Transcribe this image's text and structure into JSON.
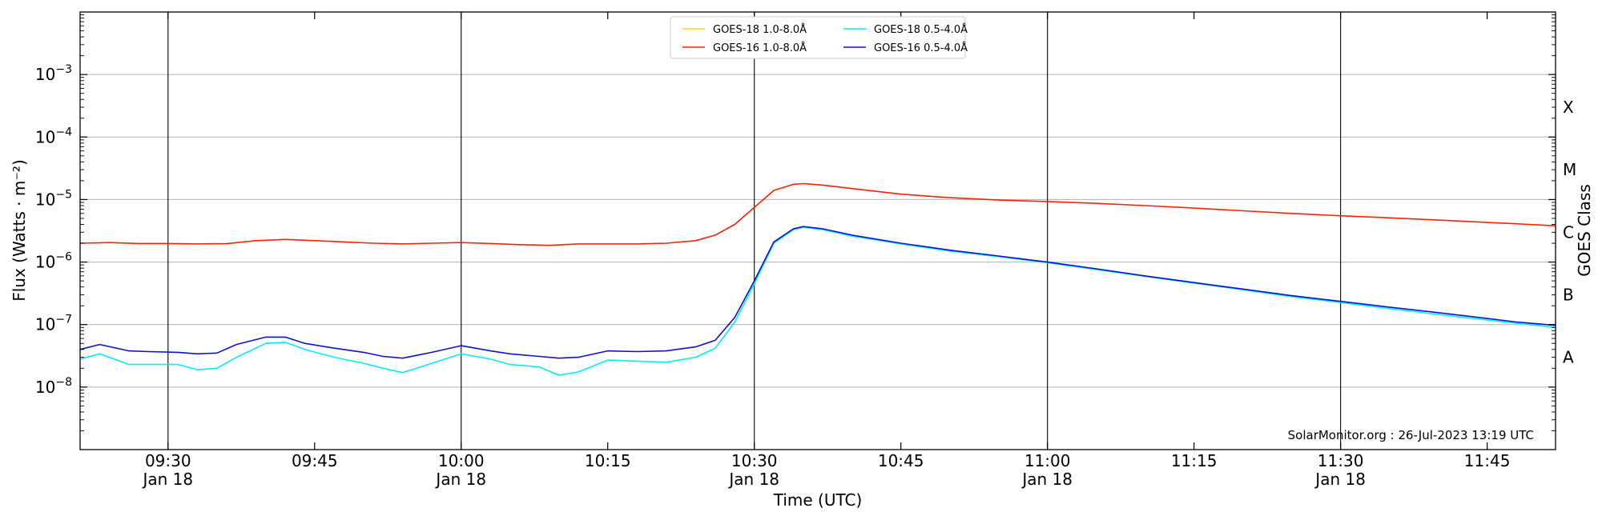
{
  "chart_data": {
    "type": "line",
    "xlabel": "Time (UTC)",
    "ylabel": "Flux (Watts · m⁻²)",
    "right_label": "GOES Class",
    "credit": "SolarMonitor.org : 26-Jul-2023 13:19 UTC",
    "grid": "horizontal",
    "legend_position": "top-center",
    "yscale": "log",
    "ylim": [
      1e-09,
      0.01
    ],
    "xlim": [
      "09:21",
      "11:52"
    ],
    "y_ticks": [
      {
        "value": 1e-08,
        "base": "10",
        "exp": "−8"
      },
      {
        "value": 1e-07,
        "base": "10",
        "exp": "−7"
      },
      {
        "value": 1e-06,
        "base": "10",
        "exp": "−6"
      },
      {
        "value": 1e-05,
        "base": "10",
        "exp": "−5"
      },
      {
        "value": 0.0001,
        "base": "10",
        "exp": "−4"
      },
      {
        "value": 0.001,
        "base": "10",
        "exp": "−3"
      }
    ],
    "x_ticks": [
      {
        "time": "09:30",
        "label": "09:30",
        "date": "Jan 18",
        "vline": true
      },
      {
        "time": "09:45",
        "label": "09:45",
        "date": "",
        "vline": false
      },
      {
        "time": "10:00",
        "label": "10:00",
        "date": "Jan 18",
        "vline": true
      },
      {
        "time": "10:15",
        "label": "10:15",
        "date": "",
        "vline": false
      },
      {
        "time": "10:30",
        "label": "10:30",
        "date": "Jan 18",
        "vline": true
      },
      {
        "time": "10:45",
        "label": "10:45",
        "date": "",
        "vline": false
      },
      {
        "time": "11:00",
        "label": "11:00",
        "date": "Jan 18",
        "vline": true
      },
      {
        "time": "11:15",
        "label": "11:15",
        "date": "",
        "vline": false
      },
      {
        "time": "11:30",
        "label": "11:30",
        "date": "Jan 18",
        "vline": true
      },
      {
        "time": "11:45",
        "label": "11:45",
        "date": "",
        "vline": false
      }
    ],
    "classes": [
      {
        "label": "A",
        "value": 3e-08
      },
      {
        "label": "B",
        "value": 3e-07
      },
      {
        "label": "C",
        "value": 3e-06
      },
      {
        "label": "M",
        "value": 3e-05
      },
      {
        "label": "X",
        "value": 0.0003
      }
    ],
    "series": [
      {
        "name": "GOES-18 1.0-8.0Å",
        "color": "#ffd700",
        "x": [],
        "values": []
      },
      {
        "name": "GOES-16 1.0-8.0Å",
        "color": "#ff2000",
        "x": [
          "09:21",
          "09:24",
          "09:27",
          "09:30",
          "09:33",
          "09:36",
          "09:39",
          "09:42",
          "09:45",
          "09:48",
          "09:51",
          "09:54",
          "09:57",
          "10:00",
          "10:03",
          "10:06",
          "10:09",
          "10:12",
          "10:15",
          "10:18",
          "10:21",
          "10:24",
          "10:26",
          "10:28",
          "10:30",
          "10:32",
          "10:34",
          "10:35",
          "10:37",
          "10:40",
          "10:45",
          "10:50",
          "10:55",
          "11:00",
          "11:05",
          "11:10",
          "11:15",
          "11:20",
          "11:25",
          "11:30",
          "11:35",
          "11:40",
          "11:45",
          "11:48",
          "11:52"
        ],
        "values": [
          2e-06,
          2.05e-06,
          1.98e-06,
          1.98e-06,
          1.95e-06,
          1.97e-06,
          2.2e-06,
          2.3e-06,
          2.2e-06,
          2.1e-06,
          2e-06,
          1.95e-06,
          2e-06,
          2.05e-06,
          1.98e-06,
          1.9e-06,
          1.85e-06,
          1.95e-06,
          1.95e-06,
          1.95e-06,
          2e-06,
          2.2e-06,
          2.7e-06,
          4e-06,
          7.5e-06,
          1.4e-05,
          1.75e-05,
          1.8e-05,
          1.7e-05,
          1.5e-05,
          1.22e-05,
          1.07e-05,
          9.8e-06,
          9.3e-06,
          8.7e-06,
          8e-06,
          7.3e-06,
          6.6e-06,
          6e-06,
          5.5e-06,
          5.1e-06,
          4.7e-06,
          4.3e-06,
          4.1e-06,
          3.8e-06
        ]
      },
      {
        "name": "GOES-18 0.5-4.0Å",
        "color": "#00f0f0",
        "x": [
          "09:21",
          "09:23",
          "09:26",
          "09:28",
          "09:31",
          "09:33",
          "09:35",
          "09:37",
          "09:40",
          "09:42",
          "09:44",
          "09:47",
          "09:50",
          "09:52",
          "09:54",
          "09:57",
          "10:00",
          "10:03",
          "10:05",
          "10:08",
          "10:10",
          "10:12",
          "10:15",
          "10:18",
          "10:21",
          "10:24",
          "10:26",
          "10:28",
          "10:30",
          "10:32",
          "10:34",
          "10:35",
          "10:37",
          "10:40",
          "10:45",
          "10:50",
          "10:55",
          "11:00",
          "11:05",
          "11:10",
          "11:15",
          "11:20",
          "11:25",
          "11:30",
          "11:35",
          "11:40",
          "11:45",
          "11:48",
          "11:52"
        ],
        "values": [
          2.8e-08,
          3.4e-08,
          2.3e-08,
          2.3e-08,
          2.3e-08,
          1.9e-08,
          2e-08,
          3e-08,
          5e-08,
          5.2e-08,
          4e-08,
          3e-08,
          2.4e-08,
          2e-08,
          1.7e-08,
          2.4e-08,
          3.4e-08,
          2.8e-08,
          2.3e-08,
          2.1e-08,
          1.55e-08,
          1.75e-08,
          2.7e-08,
          2.6e-08,
          2.5e-08,
          3e-08,
          4.2e-08,
          1.1e-07,
          4.5e-07,
          2e-06,
          3.3e-06,
          3.6e-06,
          3.3e-06,
          2.6e-06,
          1.95e-06,
          1.5e-06,
          1.22e-06,
          9.8e-07,
          7.6e-07,
          5.9e-07,
          4.6e-07,
          3.6e-07,
          2.8e-07,
          2.25e-07,
          1.8e-07,
          1.45e-07,
          1.18e-07,
          1.05e-07,
          9e-08
        ]
      },
      {
        "name": "GOES-16 0.5-4.0Å",
        "color": "#1010d0",
        "x": [
          "09:21",
          "09:23",
          "09:26",
          "09:28",
          "09:31",
          "09:33",
          "09:35",
          "09:37",
          "09:40",
          "09:42",
          "09:44",
          "09:47",
          "09:50",
          "09:52",
          "09:54",
          "09:57",
          "10:00",
          "10:03",
          "10:05",
          "10:08",
          "10:10",
          "10:12",
          "10:15",
          "10:18",
          "10:21",
          "10:24",
          "10:26",
          "10:28",
          "10:30",
          "10:32",
          "10:34",
          "10:35",
          "10:37",
          "10:40",
          "10:45",
          "10:50",
          "10:55",
          "11:00",
          "11:05",
          "11:10",
          "11:15",
          "11:20",
          "11:25",
          "11:30",
          "11:35",
          "11:40",
          "11:45",
          "11:48",
          "11:52"
        ],
        "values": [
          4e-08,
          4.8e-08,
          3.8e-08,
          3.7e-08,
          3.6e-08,
          3.4e-08,
          3.5e-08,
          4.8e-08,
          6.3e-08,
          6.3e-08,
          5e-08,
          4.2e-08,
          3.6e-08,
          3.1e-08,
          2.9e-08,
          3.6e-08,
          4.6e-08,
          3.8e-08,
          3.4e-08,
          3.1e-08,
          2.9e-08,
          3e-08,
          3.8e-08,
          3.7e-08,
          3.8e-08,
          4.4e-08,
          5.6e-08,
          1.3e-07,
          5e-07,
          2.1e-06,
          3.4e-06,
          3.7e-06,
          3.4e-06,
          2.7e-06,
          2e-06,
          1.55e-06,
          1.25e-06,
          1e-06,
          7.8e-07,
          6e-07,
          4.7e-07,
          3.7e-07,
          2.9e-07,
          2.35e-07,
          1.9e-07,
          1.55e-07,
          1.25e-07,
          1.1e-07,
          9.7e-08
        ]
      }
    ]
  }
}
